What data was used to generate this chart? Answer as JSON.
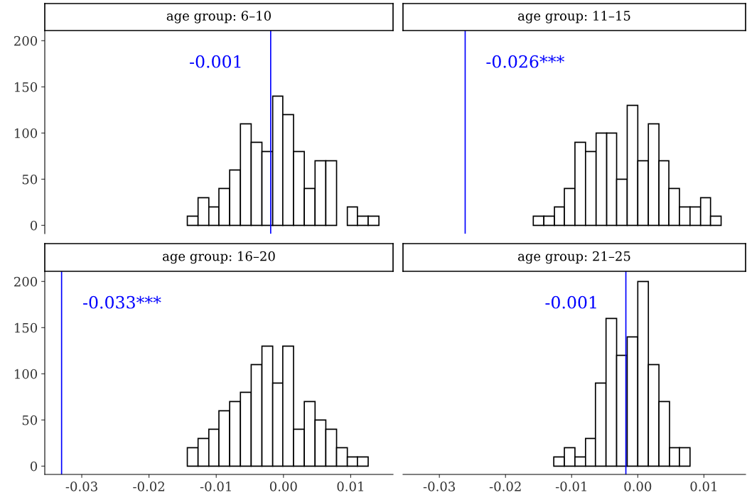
{
  "chart_data": [
    {
      "type": "histogram",
      "title": "age group: 6–10",
      "bins": [
        -0.0143,
        -0.0127,
        -0.0111,
        -0.0096,
        -0.008,
        -0.0064,
        -0.0048,
        -0.0032,
        -0.0016,
        -0.0001,
        0.0015,
        0.0031,
        0.0047,
        0.0063,
        0.0079,
        0.0095,
        0.011,
        0.0126,
        0.0142
      ],
      "values": [
        10,
        30,
        20,
        40,
        60,
        110,
        90,
        80,
        140,
        120,
        80,
        40,
        70,
        70,
        0,
        20,
        10,
        10
      ],
      "color": "#ffffff",
      "xlim": [
        -0.0355,
        0.0163
      ],
      "ylim": [
        -9,
        211
      ],
      "yticks": [
        0,
        50,
        100,
        150,
        200
      ],
      "tick_labels": "y",
      "ref_lines": [
        {
          "axis": "x",
          "value": -0.0019,
          "color": "#0000ff"
        }
      ],
      "annotations": [
        "-0.001"
      ]
    },
    {
      "type": "histogram",
      "title": "age group: 11–15",
      "bins": [
        -0.0158,
        -0.0142,
        -0.0126,
        -0.0111,
        -0.0095,
        -0.0079,
        -0.0063,
        -0.0047,
        -0.0032,
        -0.0016,
        0.0,
        0.0016,
        0.0032,
        0.0047,
        0.0063,
        0.0079,
        0.0095,
        0.011,
        0.0126
      ],
      "values": [
        10,
        10,
        20,
        40,
        90,
        80,
        100,
        100,
        50,
        130,
        70,
        110,
        70,
        40,
        20,
        20,
        30,
        10
      ],
      "color": "#ffffff",
      "xlim": [
        -0.0355,
        0.0163
      ],
      "ylim": [
        -9,
        211
      ],
      "tick_labels": false,
      "ref_lines": [
        {
          "axis": "x",
          "value": -0.0261,
          "color": "#0000ff"
        }
      ],
      "annotations": [
        "-0.026***"
      ]
    },
    {
      "type": "histogram",
      "title": "age group: 16–20",
      "bins": [
        -0.0143,
        -0.0127,
        -0.0111,
        -0.0096,
        -0.008,
        -0.0064,
        -0.0048,
        -0.0032,
        -0.0016,
        -0.0001,
        0.0015,
        0.0031,
        0.0047,
        0.0063,
        0.0079,
        0.0095,
        0.011,
        0.0126
      ],
      "values": [
        20,
        30,
        40,
        60,
        70,
        80,
        110,
        130,
        90,
        130,
        40,
        70,
        50,
        40,
        20,
        10,
        10
      ],
      "color": "#ffffff",
      "xlim": [
        -0.0355,
        0.0163
      ],
      "ylim": [
        -9,
        211
      ],
      "yticks": [
        0,
        50,
        100,
        150,
        200
      ],
      "xticks": [
        -0.03,
        -0.02,
        -0.01,
        {
          "value": 0,
          "label": "0.00"
        },
        0.01
      ],
      "ref_lines": [
        {
          "axis": "x",
          "value": -0.033,
          "color": "#0000ff"
        }
      ],
      "annotations": [
        "-0.033***"
      ]
    },
    {
      "type": "histogram",
      "title": "age group: 21–25",
      "bins": [
        -0.0127,
        -0.0111,
        -0.0095,
        -0.0079,
        -0.0064,
        -0.0048,
        -0.0032,
        -0.0016,
        0.0,
        0.0016,
        0.0032,
        0.0048,
        0.0063,
        0.0079
      ],
      "values": [
        10,
        20,
        10,
        30,
        90,
        160,
        120,
        140,
        200,
        110,
        70,
        20,
        20
      ],
      "color": "#ffffff",
      "xlim": [
        -0.0355,
        0.0163
      ],
      "ylim": [
        -9,
        211
      ],
      "xticks": [
        -0.03,
        -0.02,
        -0.01,
        {
          "value": 0,
          "label": "0.00"
        },
        0.01
      ],
      "tick_labels": "x",
      "ref_lines": [
        {
          "axis": "x",
          "value": -0.0018,
          "color": "#0000ff"
        }
      ],
      "annotations": [
        "-0.001"
      ]
    }
  ]
}
